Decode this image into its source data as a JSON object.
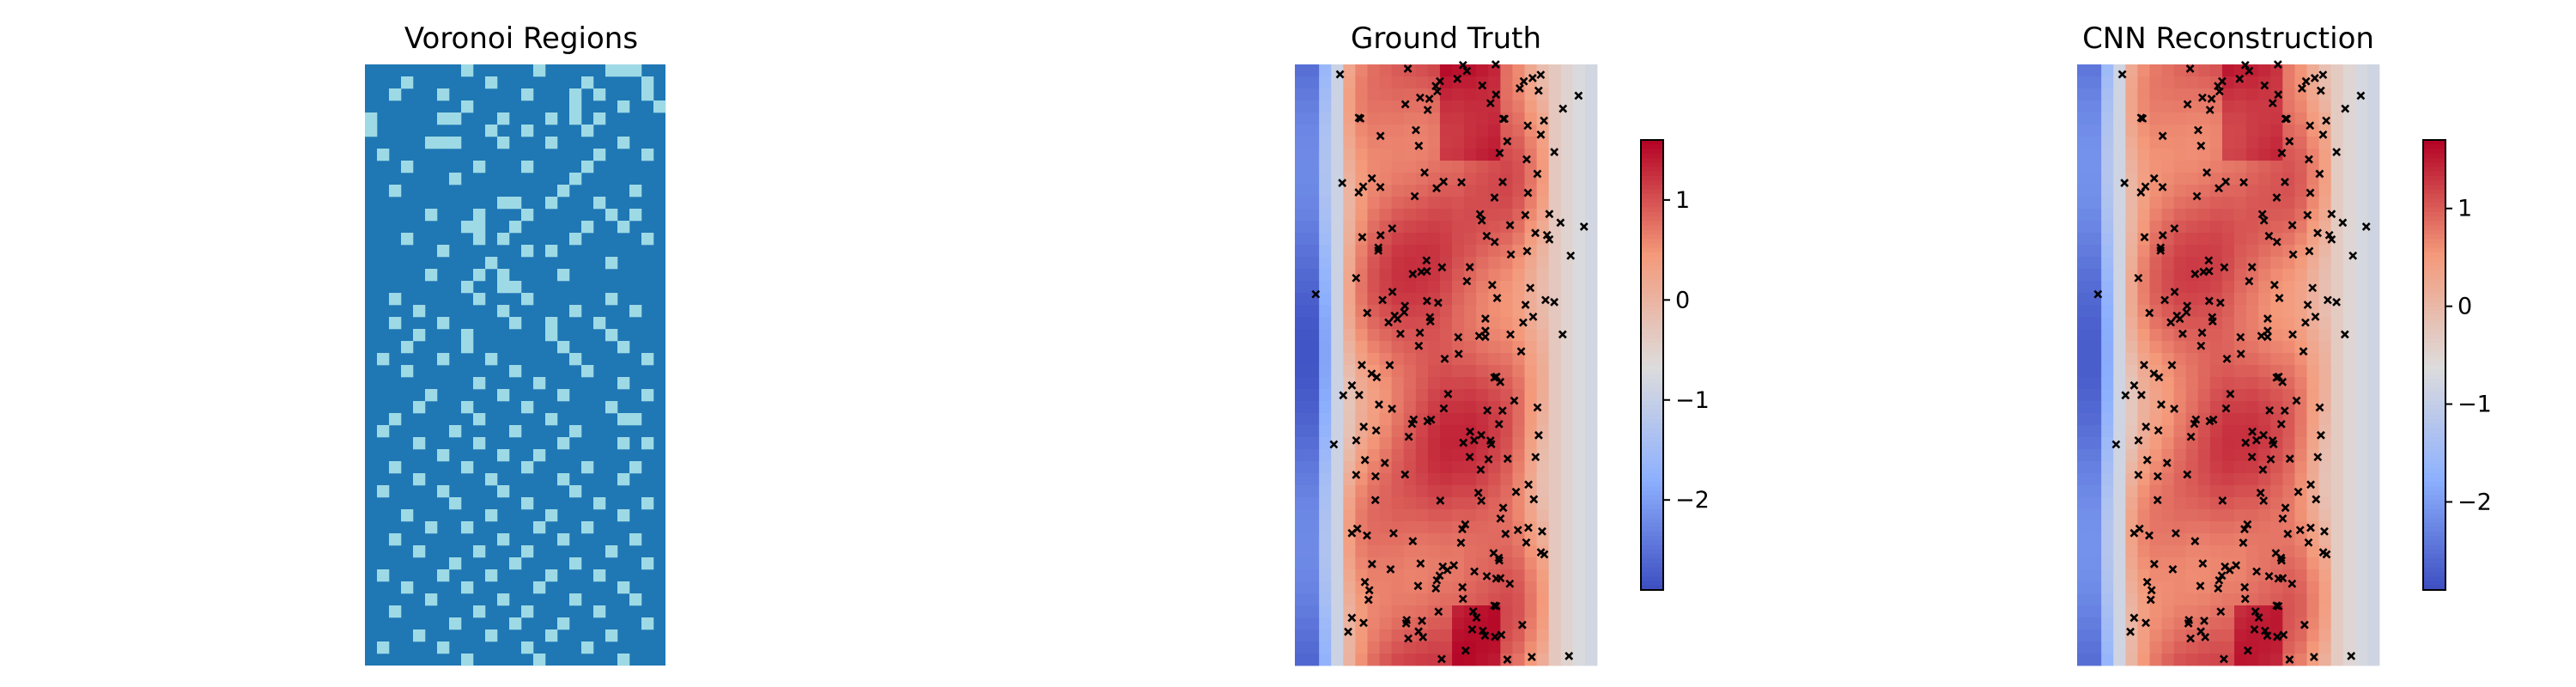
{
  "chart_data": [
    {
      "type": "heatmap",
      "title": "Voronoi Regions",
      "grid": false,
      "colors": {
        "background": "#1f77b4",
        "cell": "#9edae5"
      },
      "rows": 50,
      "cols": 25,
      "markers": [
        [
          8,
          0
        ],
        [
          14,
          0
        ],
        [
          20,
          0
        ],
        [
          21,
          0
        ],
        [
          22,
          0
        ],
        [
          3,
          1
        ],
        [
          10,
          1
        ],
        [
          18,
          1
        ],
        [
          23,
          1
        ],
        [
          2,
          2
        ],
        [
          6,
          2
        ],
        [
          13,
          2
        ],
        [
          17,
          2
        ],
        [
          19,
          2
        ],
        [
          23,
          2
        ],
        [
          8,
          3
        ],
        [
          17,
          3
        ],
        [
          21,
          3
        ],
        [
          24,
          3
        ],
        [
          0,
          4
        ],
        [
          6,
          4
        ],
        [
          7,
          4
        ],
        [
          11,
          4
        ],
        [
          15,
          4
        ],
        [
          17,
          4
        ],
        [
          19,
          4
        ],
        [
          0,
          5
        ],
        [
          10,
          5
        ],
        [
          13,
          5
        ],
        [
          18,
          5
        ],
        [
          5,
          6
        ],
        [
          6,
          6
        ],
        [
          7,
          6
        ],
        [
          11,
          6
        ],
        [
          15,
          6
        ],
        [
          21,
          6
        ],
        [
          1,
          7
        ],
        [
          19,
          7
        ],
        [
          23,
          7
        ],
        [
          3,
          8
        ],
        [
          9,
          8
        ],
        [
          13,
          8
        ],
        [
          18,
          8
        ],
        [
          7,
          9
        ],
        [
          17,
          9
        ],
        [
          2,
          10
        ],
        [
          16,
          10
        ],
        [
          22,
          10
        ],
        [
          11,
          11
        ],
        [
          12,
          11
        ],
        [
          15,
          11
        ],
        [
          19,
          11
        ],
        [
          5,
          12
        ],
        [
          9,
          12
        ],
        [
          13,
          12
        ],
        [
          20,
          12
        ],
        [
          22,
          12
        ],
        [
          8,
          13
        ],
        [
          9,
          13
        ],
        [
          12,
          13
        ],
        [
          18,
          13
        ],
        [
          21,
          13
        ],
        [
          3,
          14
        ],
        [
          9,
          14
        ],
        [
          11,
          14
        ],
        [
          17,
          14
        ],
        [
          23,
          14
        ],
        [
          6,
          15
        ],
        [
          13,
          15
        ],
        [
          15,
          15
        ],
        [
          10,
          16
        ],
        [
          20,
          16
        ],
        [
          5,
          17
        ],
        [
          9,
          17
        ],
        [
          11,
          17
        ],
        [
          16,
          17
        ],
        [
          8,
          18
        ],
        [
          11,
          18
        ],
        [
          12,
          18
        ],
        [
          2,
          19
        ],
        [
          9,
          19
        ],
        [
          13,
          19
        ],
        [
          20,
          19
        ],
        [
          4,
          20
        ],
        [
          11,
          20
        ],
        [
          17,
          20
        ],
        [
          22,
          20
        ],
        [
          2,
          21
        ],
        [
          6,
          21
        ],
        [
          12,
          21
        ],
        [
          15,
          21
        ],
        [
          19,
          21
        ],
        [
          4,
          22
        ],
        [
          8,
          22
        ],
        [
          15,
          22
        ],
        [
          20,
          22
        ],
        [
          3,
          23
        ],
        [
          8,
          23
        ],
        [
          16,
          23
        ],
        [
          21,
          23
        ],
        [
          1,
          24
        ],
        [
          6,
          24
        ],
        [
          10,
          24
        ],
        [
          17,
          24
        ],
        [
          23,
          24
        ],
        [
          3,
          25
        ],
        [
          12,
          25
        ],
        [
          18,
          25
        ],
        [
          9,
          26
        ],
        [
          14,
          26
        ],
        [
          21,
          26
        ],
        [
          5,
          27
        ],
        [
          11,
          27
        ],
        [
          16,
          27
        ],
        [
          23,
          27
        ],
        [
          4,
          28
        ],
        [
          8,
          28
        ],
        [
          13,
          28
        ],
        [
          20,
          28
        ],
        [
          2,
          29
        ],
        [
          9,
          29
        ],
        [
          15,
          29
        ],
        [
          21,
          29
        ],
        [
          22,
          29
        ],
        [
          1,
          30
        ],
        [
          7,
          30
        ],
        [
          12,
          30
        ],
        [
          17,
          30
        ],
        [
          4,
          31
        ],
        [
          9,
          31
        ],
        [
          16,
          31
        ],
        [
          21,
          31
        ],
        [
          23,
          31
        ],
        [
          6,
          32
        ],
        [
          11,
          32
        ],
        [
          14,
          32
        ],
        [
          2,
          33
        ],
        [
          8,
          33
        ],
        [
          13,
          33
        ],
        [
          18,
          33
        ],
        [
          22,
          33
        ],
        [
          4,
          34
        ],
        [
          10,
          34
        ],
        [
          16,
          34
        ],
        [
          21,
          34
        ],
        [
          1,
          35
        ],
        [
          6,
          35
        ],
        [
          11,
          35
        ],
        [
          17,
          35
        ],
        [
          7,
          36
        ],
        [
          13,
          36
        ],
        [
          19,
          36
        ],
        [
          23,
          36
        ],
        [
          3,
          37
        ],
        [
          10,
          37
        ],
        [
          15,
          37
        ],
        [
          21,
          37
        ],
        [
          5,
          38
        ],
        [
          8,
          38
        ],
        [
          14,
          38
        ],
        [
          18,
          38
        ],
        [
          2,
          39
        ],
        [
          11,
          39
        ],
        [
          16,
          39
        ],
        [
          22,
          39
        ],
        [
          4,
          40
        ],
        [
          9,
          40
        ],
        [
          13,
          40
        ],
        [
          20,
          40
        ],
        [
          7,
          41
        ],
        [
          12,
          41
        ],
        [
          17,
          41
        ],
        [
          23,
          41
        ],
        [
          1,
          42
        ],
        [
          6,
          42
        ],
        [
          10,
          42
        ],
        [
          15,
          42
        ],
        [
          19,
          42
        ],
        [
          3,
          43
        ],
        [
          8,
          43
        ],
        [
          14,
          43
        ],
        [
          21,
          43
        ],
        [
          5,
          44
        ],
        [
          11,
          44
        ],
        [
          17,
          44
        ],
        [
          22,
          44
        ],
        [
          2,
          45
        ],
        [
          9,
          45
        ],
        [
          13,
          45
        ],
        [
          19,
          45
        ],
        [
          7,
          46
        ],
        [
          12,
          46
        ],
        [
          16,
          46
        ],
        [
          23,
          46
        ],
        [
          4,
          47
        ],
        [
          10,
          47
        ],
        [
          15,
          47
        ],
        [
          20,
          47
        ],
        [
          1,
          48
        ],
        [
          6,
          48
        ],
        [
          13,
          48
        ],
        [
          18,
          48
        ],
        [
          8,
          49
        ],
        [
          14,
          49
        ],
        [
          21,
          49
        ]
      ]
    },
    {
      "type": "heatmap",
      "title": "Ground Truth",
      "colormap": "coolwarm",
      "grid": false,
      "vmin": -2.9,
      "vmax": 1.6,
      "colorbar": {
        "ticks": [
          -2,
          -1,
          0,
          1
        ],
        "tick_labels": [
          "−2",
          "−1",
          "0",
          "1"
        ],
        "placement": "right"
      },
      "field": {
        "rows": 50,
        "cols": 25,
        "profile": [
          -2.5,
          -2.5,
          -1.6,
          -0.9,
          0.1,
          0.5,
          0.7,
          0.8,
          0.9,
          0.95,
          1.0,
          1.05,
          1.05,
          1.0,
          1.0,
          0.95,
          0.9,
          0.85,
          0.7,
          0.4,
          0.1,
          -0.3,
          -0.5,
          -0.7,
          -0.8
        ]
      },
      "sample_markers": "x"
    },
    {
      "type": "heatmap",
      "title": "CNN Reconstruction",
      "colormap": "coolwarm",
      "grid": false,
      "vmin": -2.9,
      "vmax": 1.7,
      "colorbar": {
        "ticks": [
          -2,
          -1,
          0,
          1
        ],
        "tick_labels": [
          "−2",
          "−1",
          "0",
          "1"
        ],
        "placement": "right"
      },
      "field": {
        "rows": 50,
        "cols": 25,
        "profile": [
          -2.4,
          -2.4,
          -1.5,
          -0.8,
          0.1,
          0.5,
          0.7,
          0.8,
          0.9,
          0.95,
          1.0,
          1.05,
          1.05,
          1.0,
          1.0,
          0.95,
          0.9,
          0.85,
          0.7,
          0.4,
          0.1,
          -0.3,
          -0.5,
          -0.7,
          -0.8
        ]
      },
      "sample_markers": "x"
    }
  ]
}
